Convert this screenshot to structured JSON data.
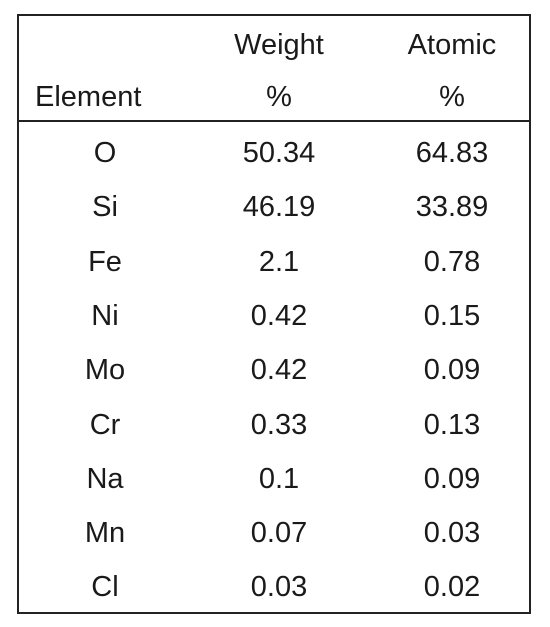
{
  "table": {
    "header": [
      [
        "Element"
      ],
      [
        "Weight",
        "%"
      ],
      [
        "Atomic",
        "%"
      ]
    ],
    "rows": [
      [
        "O",
        "50.34",
        "64.83"
      ],
      [
        "Si",
        "46.19",
        "33.89"
      ],
      [
        "Fe",
        "2.1",
        "0.78"
      ],
      [
        "Ni",
        "0.42",
        "0.15"
      ],
      [
        "Mo",
        "0.42",
        "0.09"
      ],
      [
        "Cr",
        "0.33",
        "0.13"
      ],
      [
        "Na",
        "0.1",
        "0.09"
      ],
      [
        "Mn",
        "0.07",
        "0.03"
      ],
      [
        "Cl",
        "0.03",
        "0.02"
      ]
    ]
  }
}
